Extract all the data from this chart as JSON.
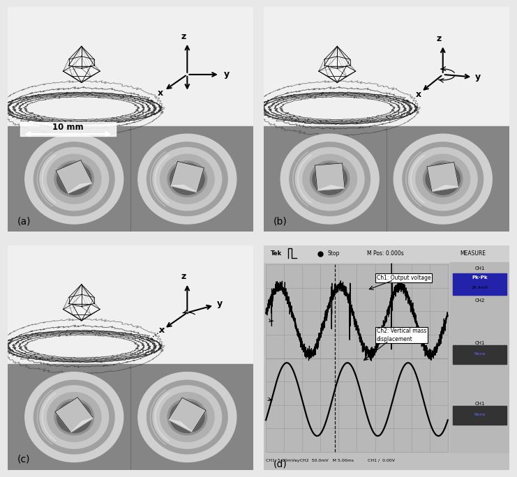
{
  "bg_color": "#e8e8e8",
  "panel_top_bg": "#f0f0f0",
  "panel_photo_bg": "#787878",
  "label_a": "(a)",
  "label_b": "(b)",
  "label_c": "(c)",
  "label_d": "(d)",
  "scale_bar_text": "10 mm",
  "ch1_label": "Ch1: Output voltage",
  "ch2_label": "Ch2: Vertical mass\ndisplacement",
  "osc_grid_color": "#aaaaaa",
  "osc_bg": "#c8c8c8",
  "osc_plot_bg": "#b8b8b8"
}
